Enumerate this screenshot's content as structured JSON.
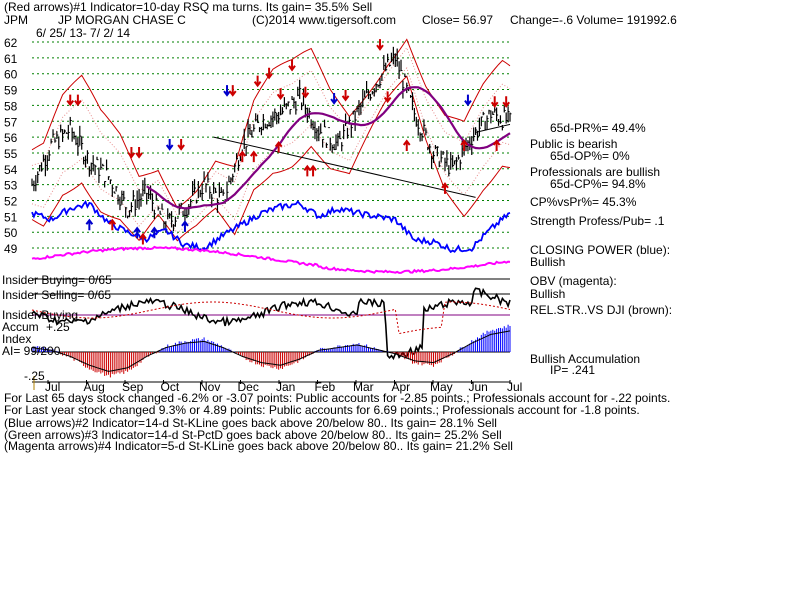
{
  "header": {
    "line1": "(Red arrows)#1 Indicator=10-day RSQ ma turns. Its gain= 35.5% Sell",
    "ticker": "JPM",
    "company": "JP MORGAN CHASE C",
    "source": "(C)2014 www.tigersoft.com",
    "close": "Close= 56.97",
    "change": "Change=-.6 Volume= 191992.6",
    "date_range": "6/ 25/ 13- 7/ 2/ 14"
  },
  "side_panel": {
    "pr65": "65d-PR%= 49.4%",
    "public_bearish": "Public is bearish",
    "op65": "65d-OP%= 0%",
    "pros_bullish": "Professionals are bullish",
    "cp65": "65d-CP%= 94.8%",
    "cpvspr": "CP%vsPr%= 45.3%",
    "strength": "Strength Profess/Pub= .1",
    "closing_power": "CLOSING POWER (blue):",
    "closing_power_state": "Bullish",
    "obv": "OBV (magenta):",
    "obv_state": "Bullish",
    "relstr": "REL.STR..VS DJI (brown):",
    "accum": "Bullish Accumulation",
    "ip": "IP= .241"
  },
  "indicator_labels": {
    "insider_buying_count": "Insider Buying= 0/65",
    "insider_selling_count": "Insider Selling= 0/65",
    "insider_buying": "Insider Buying",
    "accum_index": "Accum",
    "accum_index2": "Index",
    "accum_plus": "+.25",
    "ai": "AI= 99/200",
    "minus25": "-.25"
  },
  "footer": {
    "line1": "For Last 65 days stock changed -6.2% or -3.07 points: Public accounts for -2.85 points.; Professionals account for -.22 points.",
    "line2": "For Last year stock changed 9.3% or 4.89 points: Public accounts for 6.69 points.; Professionals account for -1.8 points.",
    "line3": "(Blue arrows)#2 Indicator=14-d St-KLine goes back above 20/below 80.. Its gain= 28.1% Sell",
    "line4": "(Green arrows)#3 Indicator=14-d St-PctD goes back above 20/below 80.. Its gain= 25.2% Sell",
    "line5": "(Magenta arrows)#4 Indicator=5-d St-KLine goes back above 20/below 80.. Its gain= 21.2% Sell"
  },
  "colors": {
    "price": "#000000",
    "band": "#cc0000",
    "ma": "#800080",
    "closing_power": "#0000ff",
    "obv": "#ff00ff",
    "grid": "#008000",
    "accum_pos": "#0000ff",
    "accum_neg": "#cc0000"
  },
  "chart_data": {
    "type": "line",
    "yaxis_ticks": [
      62,
      61,
      60,
      59,
      58,
      57,
      56,
      55,
      54,
      53,
      52,
      51,
      50,
      49
    ],
    "ylim": [
      48.5,
      62.5
    ],
    "months": [
      "Jul",
      "Aug",
      "Sep",
      "Oct",
      "Nov",
      "Dec",
      "Jan",
      "Feb",
      "Mar",
      "Apr",
      "May",
      "Jun",
      "Jul"
    ],
    "price_series": {
      "name": "JPM",
      "x": [
        0,
        10,
        20,
        30,
        40,
        50,
        60,
        70,
        80,
        90,
        100,
        110,
        120,
        130,
        140,
        150,
        160,
        170,
        180,
        190,
        200,
        210,
        220,
        230,
        240,
        250
      ],
      "values": [
        53.0,
        55.5,
        56.5,
        54.5,
        53.5,
        51.5,
        52.5,
        50.5,
        51.5,
        53.0,
        52.0,
        55.5,
        57.0,
        57.5,
        58.5,
        56.5,
        55.5,
        57.5,
        59.5,
        61.0,
        57.5,
        55.0,
        54.0,
        56.0,
        57.5,
        56.97
      ]
    },
    "accumulation_index": {
      "x": [
        0,
        10,
        20,
        30,
        40,
        50,
        60,
        70,
        80,
        90,
        100,
        110,
        120,
        130,
        140,
        150,
        160,
        170,
        180,
        190,
        200,
        210,
        220,
        230,
        240,
        250
      ],
      "values": [
        0.05,
        0.02,
        -0.05,
        -0.15,
        -0.22,
        -0.18,
        -0.05,
        0.05,
        0.1,
        0.12,
        0.05,
        -0.05,
        -0.12,
        -0.15,
        -0.08,
        0.02,
        0.05,
        0.08,
        0.03,
        -0.02,
        -0.1,
        -0.12,
        -0.02,
        0.1,
        0.2,
        0.24
      ]
    }
  }
}
